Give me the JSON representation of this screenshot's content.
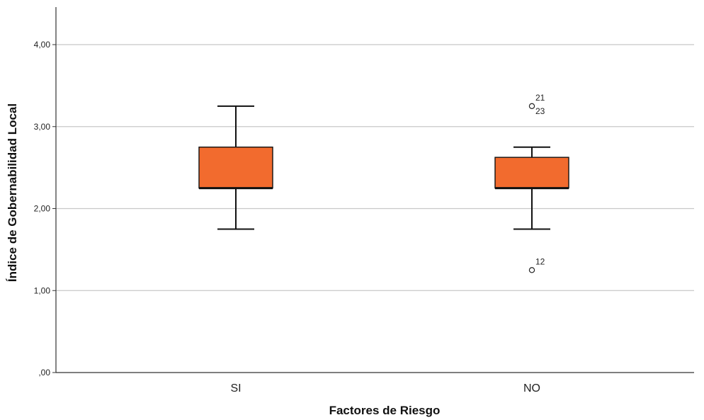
{
  "chart_data": {
    "type": "box",
    "xlabel": "Factores de Riesgo",
    "ylabel": "Índice de Gobernabilidad Local",
    "ylim": [
      0,
      4.4
    ],
    "yticks": [
      {
        "value": 0,
        "label": ",00"
      },
      {
        "value": 1,
        "label": "1,00"
      },
      {
        "value": 2,
        "label": "2,00"
      },
      {
        "value": 3,
        "label": "3,00"
      },
      {
        "value": 4,
        "label": "4,00"
      }
    ],
    "grid": true,
    "box_color": "#F26B2E",
    "categories": [
      "SI",
      "NO"
    ],
    "boxes": [
      {
        "category": "SI",
        "whisker_low": 1.75,
        "q1": 2.25,
        "median": 2.25,
        "q3": 2.75,
        "whisker_high": 3.25,
        "outliers": []
      },
      {
        "category": "NO",
        "whisker_low": 1.75,
        "q1": 2.25,
        "median": 2.25,
        "q3": 2.625,
        "whisker_high": 2.75,
        "outliers": [
          {
            "value": 3.25,
            "labels": [
              "21",
              "23"
            ]
          },
          {
            "value": 1.25,
            "labels": [
              "12"
            ]
          }
        ]
      }
    ]
  }
}
